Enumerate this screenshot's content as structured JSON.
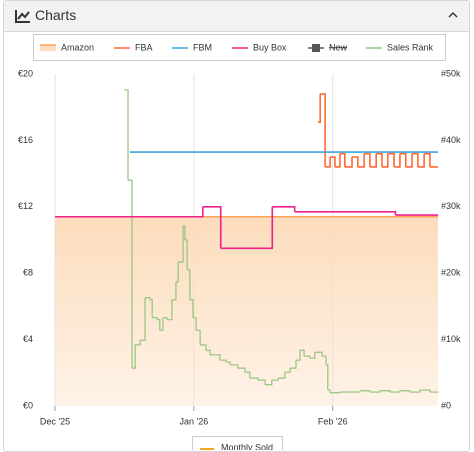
{
  "header": {
    "title": "Charts"
  },
  "chart_data": {
    "type": "line",
    "step": true,
    "grid": "x",
    "xlim": [
      0,
      85.5
    ],
    "xticks": [
      {
        "value": 0,
        "label": "Dec '25"
      },
      {
        "value": 31,
        "label": "Jan '26"
      },
      {
        "value": 62,
        "label": "Feb '26"
      }
    ],
    "ylim": [
      0,
      20
    ],
    "yticks": [
      {
        "value": 0,
        "label": "€0"
      },
      {
        "value": 4,
        "label": "€4"
      },
      {
        "value": 8,
        "label": "€8"
      },
      {
        "value": 12,
        "label": "€12"
      },
      {
        "value": 16,
        "label": "€16"
      },
      {
        "value": 20,
        "label": "€20"
      }
    ],
    "y2lim": [
      0,
      50000
    ],
    "y2ticks": [
      {
        "value": 0,
        "label": "#0"
      },
      {
        "value": 10000,
        "label": "#10k"
      },
      {
        "value": 20000,
        "label": "#20k"
      },
      {
        "value": 30000,
        "label": "#30k"
      },
      {
        "value": 40000,
        "label": "#40k"
      },
      {
        "value": 50000,
        "label": "#50k"
      }
    ],
    "series": [
      {
        "name": "Amazon",
        "color": "#f7a35c",
        "fill_color": "#fcdcbc",
        "fill": true,
        "x": [
          0,
          85.5
        ],
        "values": [
          11.4,
          11.4
        ]
      },
      {
        "name": "FBA",
        "color": "#ff6a33",
        "x": [
          58.7,
          59.2,
          60.3,
          61.4,
          62.5,
          63.6,
          64.7,
          66.3,
          67.6,
          69.0,
          70.3,
          71.7,
          73.0,
          74.3,
          75.7,
          77.0,
          78.3,
          79.7,
          81.0,
          82.4,
          83.7,
          85.5
        ],
        "values": [
          17.1,
          18.8,
          14.4,
          15.0,
          14.4,
          15.2,
          14.4,
          15.0,
          14.4,
          15.2,
          14.4,
          15.2,
          14.4,
          15.2,
          14.4,
          15.2,
          14.4,
          15.2,
          14.4,
          15.2,
          14.4,
          14.4
        ]
      },
      {
        "name": "FBM",
        "color": "#3ea6dc",
        "x": [
          16.7,
          85.5
        ],
        "values": [
          15.3,
          15.3
        ]
      },
      {
        "name": "Buy Box",
        "color": "#f0208a",
        "x": [
          0,
          33,
          37,
          48.5,
          53.5,
          76,
          85.5
        ],
        "values": [
          11.4,
          12,
          9.5,
          12,
          11.7,
          11.5,
          11.5
        ]
      },
      {
        "name": "New",
        "color": "#555555",
        "hidden": true,
        "x": [],
        "values": []
      },
      {
        "name": "Sales Rank",
        "color": "#93c47d",
        "axis": "y2",
        "x": [
          15.4,
          15.8,
          16.3,
          17.2,
          17.9,
          19.0,
          20.1,
          21.2,
          21.7,
          22.8,
          23.4,
          24.1,
          25.0,
          26.1,
          27.0,
          27.5,
          27.9,
          28.6,
          29.0,
          29.5,
          30.1,
          30.8,
          31.5,
          32.4,
          33.7,
          34.6,
          35.9,
          36.8,
          38.2,
          39.1,
          40.8,
          42.4,
          43.5,
          45.3,
          46.9,
          48.4,
          49.8,
          51.3,
          52.5,
          53.8,
          54.7,
          55.6,
          56.9,
          58.0,
          59.6,
          60.5,
          60.9,
          61.4,
          63.6,
          65.8,
          68.1,
          70.3,
          72.5,
          74.8,
          77.0,
          79.2,
          81.5,
          83.7,
          85.5
        ],
        "values": [
          47600,
          47600,
          34000,
          5700,
          9200,
          9900,
          16300,
          16000,
          13300,
          13000,
          11400,
          13300,
          13000,
          16000,
          18700,
          21700,
          21700,
          27100,
          25000,
          20500,
          16000,
          13300,
          11400,
          9200,
          8400,
          7700,
          7700,
          6900,
          6600,
          6200,
          5700,
          5100,
          4200,
          3900,
          3200,
          3900,
          4200,
          5100,
          5700,
          6900,
          8400,
          7500,
          7200,
          8100,
          7500,
          6200,
          2400,
          2000,
          2100,
          2100,
          2300,
          2100,
          2300,
          2100,
          2300,
          2100,
          2400,
          2100,
          2000
        ]
      }
    ],
    "secondary_legend": [
      {
        "name": "Monthly Sold",
        "color": "#f5a623"
      }
    ]
  }
}
